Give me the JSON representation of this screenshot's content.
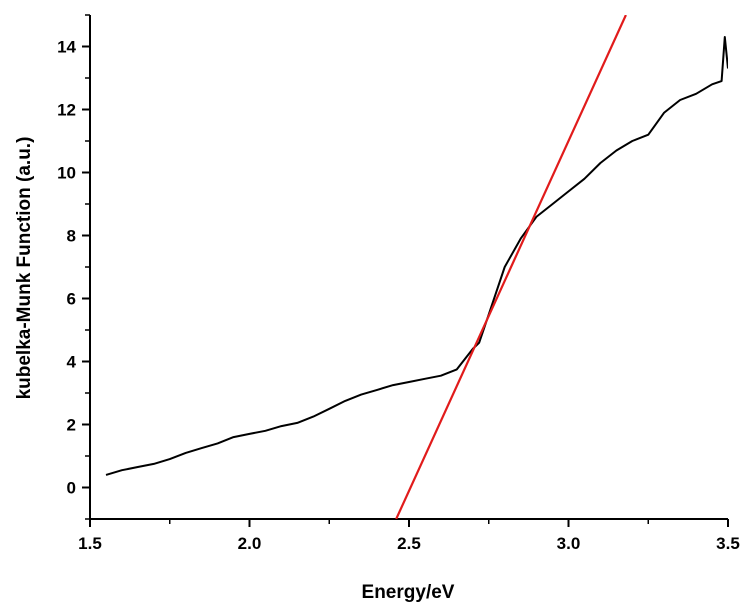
{
  "chart_data": {
    "type": "line",
    "xlabel": "Energy/eV",
    "ylabel": "kubelka-Munk Function (a.u.)",
    "xlim": [
      1.5,
      3.5
    ],
    "ylim": [
      -1,
      15
    ],
    "x_ticks": [
      1.5,
      2.0,
      2.5,
      3.0,
      3.5
    ],
    "x_tick_labels": [
      "1.5",
      "2.0",
      "2.5",
      "3.0",
      "3.5"
    ],
    "y_ticks": [
      0,
      2,
      4,
      6,
      8,
      10,
      12,
      14
    ],
    "y_tick_labels": [
      "0",
      "2",
      "4",
      "6",
      "8",
      "10",
      "12",
      "14"
    ],
    "grid": false,
    "series": [
      {
        "style": "line",
        "color": "#000000",
        "x": [
          1.55,
          1.6,
          1.65,
          1.7,
          1.75,
          1.8,
          1.85,
          1.9,
          1.95,
          2.0,
          2.05,
          2.1,
          2.15,
          2.2,
          2.25,
          2.3,
          2.35,
          2.4,
          2.45,
          2.5,
          2.55,
          2.6,
          2.65,
          2.7,
          2.72,
          2.75,
          2.8,
          2.85,
          2.9,
          2.95,
          3.0,
          3.05,
          3.1,
          3.15,
          3.2,
          3.25,
          3.3,
          3.35,
          3.4,
          3.45,
          3.48,
          3.49,
          3.5
        ],
        "y": [
          0.4,
          0.55,
          0.65,
          0.75,
          0.9,
          1.1,
          1.25,
          1.4,
          1.6,
          1.7,
          1.8,
          1.95,
          2.05,
          2.25,
          2.5,
          2.75,
          2.95,
          3.1,
          3.25,
          3.35,
          3.45,
          3.55,
          3.75,
          4.4,
          4.6,
          5.5,
          7.0,
          7.9,
          8.6,
          9.0,
          9.4,
          9.8,
          10.3,
          10.7,
          11.0,
          11.2,
          11.9,
          12.3,
          12.5,
          12.8,
          12.9,
          14.3,
          13.3
        ]
      },
      {
        "style": "line",
        "color": "#e11b1b",
        "x": [
          2.46,
          3.18
        ],
        "y": [
          -1,
          15
        ]
      }
    ]
  }
}
